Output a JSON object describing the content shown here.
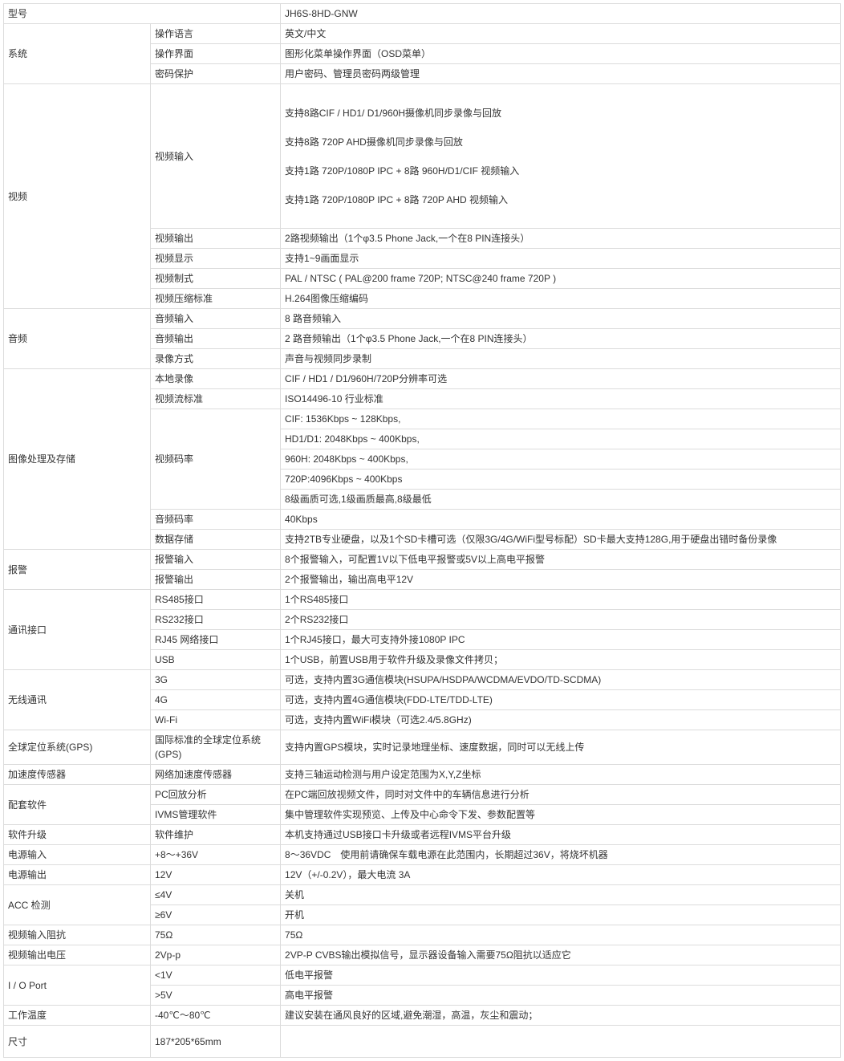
{
  "rows": [
    {
      "c1": "型号",
      "c1span": 2,
      "c3": "JH6S-8HD-GNW"
    },
    {
      "c1": "系统",
      "c1rowspan": 3,
      "c2": "操作语言",
      "c3": "英文/中文"
    },
    {
      "c2": "操作界面",
      "c3": "图形化菜单操作界面（OSD菜单）"
    },
    {
      "c2": "密码保护",
      "c3": "用户密码、管理员密码两级管理"
    },
    {
      "c1": "视频",
      "c1rowspan": 5,
      "c2": "视频输入",
      "c3": "支持8路CIF / HD1/ D1/960H摄像机同步录像与回放\n\n支持8路 720P AHD摄像机同步录像与回放\n\n支持1路 720P/1080P IPC + 8路 960H/D1/CIF 视频输入\n\n支持1路 720P/1080P IPC + 8路 720P AHD 视频输入",
      "tall": true
    },
    {
      "c2": "视频输出",
      "c3": "2路视频输出（1个φ3.5 Phone Jack,一个在8 PIN连接头）"
    },
    {
      "c2": "视频显示",
      "c3": "支持1~9画面显示"
    },
    {
      "c2": "视频制式",
      "c3": "PAL / NTSC ( PAL@200 frame 720P; NTSC@240 frame 720P )"
    },
    {
      "c2": "视频压缩标准",
      "c3": "H.264图像压缩编码"
    },
    {
      "c1": "音频",
      "c1rowspan": 3,
      "c2": "音频输入",
      "c3": "8 路音频输入"
    },
    {
      "c2": "音频输出",
      "c3": "2 路音频输出（1个φ3.5 Phone Jack,一个在8 PIN连接头）"
    },
    {
      "c2": "录像方式",
      "c3": "声音与视频同步录制"
    },
    {
      "c1": "图像处理及存储",
      "c1rowspan": 9,
      "c2": "本地录像",
      "c3": "CIF / HD1 / D1/960H/720P分辨率可选"
    },
    {
      "c2": "视频流标准",
      "c3": "ISO14496-10 行业标准"
    },
    {
      "c2": "视频码率",
      "c2rowspan": 5,
      "c3": "CIF: 1536Kbps ~ 128Kbps,"
    },
    {
      "c3": "HD1/D1: 2048Kbps ~ 400Kbps,"
    },
    {
      "c3": "960H: 2048Kbps ~ 400Kbps,"
    },
    {
      "c3": "720P:4096Kbps ~ 400Kbps"
    },
    {
      "c3": "8级画质可选,1级画质最高,8级最低"
    },
    {
      "c2": "音频码率",
      "c3": "40Kbps"
    },
    {
      "c2": "数据存储",
      "c3": "支持2TB专业硬盘，以及1个SD卡槽可选（仅限3G/4G/WiFi型号标配）SD卡最大支持128G,用于硬盘出错时备份录像"
    },
    {
      "c1": "报警",
      "c1rowspan": 2,
      "c2": "报警输入",
      "c3": "8个报警输入，可配置1V以下低电平报警或5V以上高电平报警"
    },
    {
      "c2": "报警输出",
      "c3": "2个报警输出，输出高电平12V"
    },
    {
      "c1": "通讯接口",
      "c1rowspan": 4,
      "c2": "RS485接口",
      "c3": "1个RS485接口"
    },
    {
      "c2": "RS232接口",
      "c3": "2个RS232接口"
    },
    {
      "c2": "RJ45 网络接口",
      "c3": "1个RJ45接口，最大可支持外接1080P IPC"
    },
    {
      "c2": "USB",
      "c3": "1个USB，前置USB用于软件升级及录像文件拷贝；"
    },
    {
      "c1": "无线通讯",
      "c1rowspan": 3,
      "c2": "3G",
      "c3": "可选，支持内置3G通信模块(HSUPA/HSDPA/WCDMA/EVDO/TD-SCDMA)"
    },
    {
      "c2": "4G",
      "c3": "可选，支持内置4G通信模块(FDD-LTE/TDD-LTE)"
    },
    {
      "c2": "Wi-Fi",
      "c3": "可选，支持内置WiFi模块（可选2.4/5.8GHz)"
    },
    {
      "c1": "全球定位系统(GPS)",
      "c2": "国际标准的全球定位系统(GPS)",
      "c3": "支持内置GPS模块，实时记录地理坐标、速度数据，同时可以无线上传"
    },
    {
      "c1": "加速度传感器",
      "c2": "网络加速度传感器",
      "c3": "支持三轴运动检测与用户设定范围为X,Y,Z坐标"
    },
    {
      "c1": "配套软件",
      "c1rowspan": 2,
      "c2": "PC回放分析",
      "c3": "在PC端回放视频文件，同时对文件中的车辆信息进行分析"
    },
    {
      "c2": "IVMS管理软件",
      "c3": "集中管理软件实现预览、上传及中心命令下发、参数配置等"
    },
    {
      "c1": "软件升级",
      "c2": "软件维护",
      "c3": "本机支持通过USB接口卡升级或者远程IVMS平台升级"
    },
    {
      "c1": "电源输入",
      "c2": "+8～+36V",
      "c3": "8～36VDC　使用前请确保车载电源在此范围内，长期超过36V，将烧坏机器"
    },
    {
      "c1": "电源输出",
      "c2": "12V",
      "c3": "12V（+/-0.2V），最大电流 3A"
    },
    {
      "c1": "ACC 检测",
      "c1rowspan": 2,
      "c2": "≤4V",
      "c3": "关机"
    },
    {
      "c2": "≥6V",
      "c3": "开机"
    },
    {
      "c1": "视频输入阻抗",
      "c2": "75Ω",
      "c3": "75Ω"
    },
    {
      "c1": "视频输出电压",
      "c2": "2Vp-p",
      "c3": "2VP-P CVBS输出模拟信号，显示器设备输入需要75Ω阻抗以适应它"
    },
    {
      "c1": "I / O Port",
      "c1rowspan": 2,
      "c2": "<1V",
      "c3": "低电平报警"
    },
    {
      "c2": ">5V",
      "c3": "高电平报警"
    },
    {
      "c1": "工作温度",
      "c2": "-40℃～80℃",
      "c3": "建议安装在通风良好的区域,避免潮湿，高温，灰尘和震动；"
    },
    {
      "c1": "尺寸",
      "c2": "187*205*65mm",
      "c3": "",
      "lastTall": true
    }
  ]
}
